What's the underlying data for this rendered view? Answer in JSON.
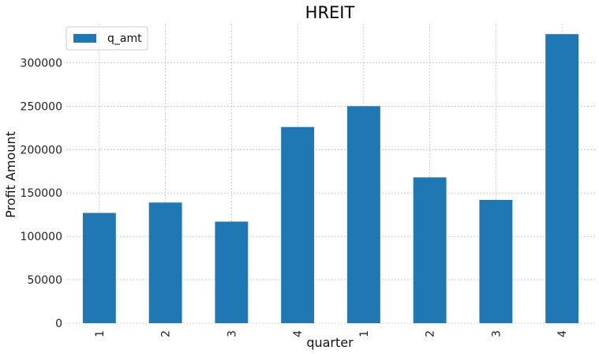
{
  "chart_data": {
    "type": "bar",
    "title": "HREIT",
    "xlabel": "quarter",
    "ylabel": "Profit Amount",
    "categories": [
      "1",
      "2",
      "3",
      "4",
      "1",
      "2",
      "3",
      "4"
    ],
    "series": [
      {
        "name": "q_amt",
        "values": [
          127000,
          139000,
          117000,
          226000,
          250000,
          168000,
          142000,
          333000
        ]
      }
    ],
    "ylim": [
      0,
      345000
    ],
    "yticks": [
      0,
      50000,
      100000,
      150000,
      200000,
      250000,
      300000
    ],
    "ytick_labels": [
      "0",
      "50000",
      "100000",
      "150000",
      "200000",
      "250000",
      "300000"
    ],
    "grid": true,
    "legend_position": "top-left",
    "colors": {
      "bar": "#1f77b4",
      "grid": "#b0b0b0"
    }
  }
}
